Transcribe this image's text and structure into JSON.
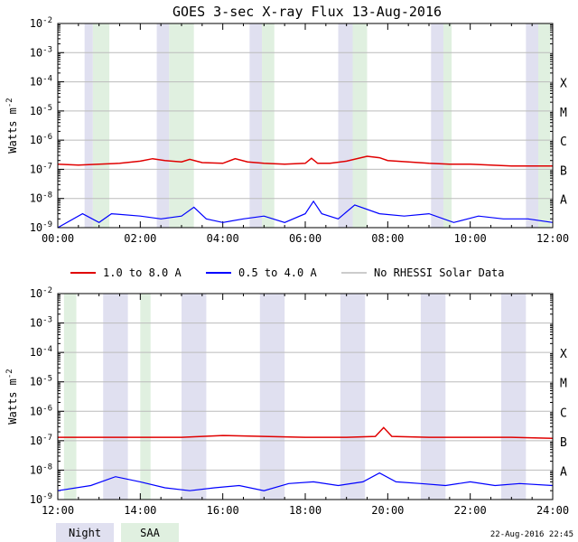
{
  "title": "GOES 3-sec X-ray Flux   13-Aug-2016",
  "ylabel": "Watts m",
  "ylabel_sup": "-2",
  "footer_timestamp": "22-Aug-2016 22:45",
  "colors": {
    "long": "#e00000",
    "short": "#0000ff",
    "norhessi": "#999999",
    "night": "#e0e0f0",
    "saa": "#e0f0e0",
    "grid": "#bbbbbb"
  },
  "legend": [
    {
      "label": "1.0 to 8.0 A",
      "color": "#e00000"
    },
    {
      "label": "0.5 to 4.0 A",
      "color": "#0000ff"
    },
    {
      "label": "No RHESSI Solar Data",
      "color": "#999999"
    }
  ],
  "key": [
    {
      "label": "Night",
      "color": "#e0e0f0"
    },
    {
      "label": "SAA",
      "color": "#e0f0e0"
    }
  ],
  "chart_data": [
    {
      "type": "line",
      "title": "GOES 3-sec X-ray Flux   13-Aug-2016",
      "ylabel": "Watts m-2",
      "xlim": [
        0,
        12
      ],
      "ylim_exp": [
        -9,
        -2
      ],
      "log_y": true,
      "x_ticks": [
        "00:00",
        "02:00",
        "04:00",
        "06:00",
        "08:00",
        "10:00",
        "12:00"
      ],
      "y_ticks": [
        "10-9",
        "10-8",
        "10-7",
        "10-6",
        "10-5",
        "10-4",
        "10-3",
        "10-2"
      ],
      "class_labels": [
        "A",
        "B",
        "C",
        "M",
        "X"
      ],
      "night": [
        [
          0.65,
          0.85
        ],
        [
          2.4,
          2.7
        ],
        [
          4.65,
          4.95
        ],
        [
          6.8,
          7.15
        ],
        [
          9.05,
          9.35
        ],
        [
          11.35,
          11.65
        ]
      ],
      "saa": [
        [
          0.85,
          1.25
        ],
        [
          2.7,
          3.3
        ],
        [
          4.95,
          5.25
        ],
        [
          7.15,
          7.5
        ],
        [
          9.35,
          9.55
        ],
        [
          11.65,
          11.95
        ]
      ],
      "series": [
        {
          "name": "1.0 to 8.0 A",
          "x": [
            0,
            0.5,
            1.0,
            1.5,
            2.0,
            2.3,
            2.6,
            3.0,
            3.2,
            3.5,
            4.0,
            4.3,
            4.6,
            5.0,
            5.5,
            6.0,
            6.15,
            6.3,
            6.6,
            7.0,
            7.5,
            7.8,
            8.0,
            8.5,
            9.0,
            9.5,
            10.0,
            10.5,
            11.0,
            11.5,
            12.0
          ],
          "y": [
            1.5e-07,
            1.4e-07,
            1.5e-07,
            1.6e-07,
            1.9e-07,
            2.3e-07,
            2e-07,
            1.8e-07,
            2.2e-07,
            1.7e-07,
            1.6e-07,
            2.3e-07,
            1.8e-07,
            1.6e-07,
            1.5e-07,
            1.6e-07,
            2.4e-07,
            1.6e-07,
            1.6e-07,
            1.9e-07,
            2.8e-07,
            2.5e-07,
            2e-07,
            1.8e-07,
            1.6e-07,
            1.5e-07,
            1.5e-07,
            1.4e-07,
            1.3e-07,
            1.3e-07,
            1.3e-07
          ]
        },
        {
          "name": "0.5 to 4.0 A",
          "x": [
            0,
            0.6,
            1.0,
            1.3,
            2.0,
            2.5,
            3.0,
            3.3,
            3.6,
            4.0,
            4.5,
            5.0,
            5.5,
            6.0,
            6.2,
            6.4,
            6.8,
            7.2,
            7.8,
            8.4,
            9.0,
            9.6,
            10.2,
            10.8,
            11.4,
            12.0
          ],
          "y": [
            1e-09,
            3e-09,
            1.5e-09,
            3e-09,
            2.5e-09,
            2e-09,
            2.5e-09,
            5e-09,
            2e-09,
            1.5e-09,
            2e-09,
            2.5e-09,
            1.5e-09,
            3e-09,
            8e-09,
            3e-09,
            2e-09,
            6e-09,
            3e-09,
            2.5e-09,
            3e-09,
            1.5e-09,
            2.5e-09,
            2e-09,
            2e-09,
            1.5e-09
          ]
        }
      ]
    },
    {
      "type": "line",
      "ylabel": "Watts m-2",
      "xlim": [
        12,
        24
      ],
      "ylim_exp": [
        -9,
        -2
      ],
      "log_y": true,
      "x_ticks": [
        "12:00",
        "14:00",
        "16:00",
        "18:00",
        "20:00",
        "22:00",
        "24:00"
      ],
      "y_ticks": [
        "10-9",
        "10-8",
        "10-7",
        "10-6",
        "10-5",
        "10-4",
        "10-3",
        "10-2"
      ],
      "class_labels": [
        "A",
        "B",
        "C",
        "M",
        "X"
      ],
      "night": [
        [
          13.1,
          13.7
        ],
        [
          15.0,
          15.6
        ],
        [
          16.9,
          17.5
        ],
        [
          18.85,
          19.45
        ],
        [
          20.8,
          21.4
        ],
        [
          22.75,
          23.35
        ]
      ],
      "saa": [
        [
          12.15,
          12.45
        ],
        [
          14.0,
          14.25
        ]
      ],
      "series": [
        {
          "name": "1.0 to 8.0 A",
          "x": [
            12,
            13,
            14,
            15,
            16,
            17,
            18,
            19,
            19.7,
            19.9,
            20.1,
            21,
            22,
            23,
            24
          ],
          "y": [
            1.3e-07,
            1.3e-07,
            1.3e-07,
            1.3e-07,
            1.5e-07,
            1.4e-07,
            1.3e-07,
            1.3e-07,
            1.4e-07,
            2.8e-07,
            1.4e-07,
            1.3e-07,
            1.3e-07,
            1.3e-07,
            1.2e-07
          ]
        },
        {
          "name": "0.5 to 4.0 A",
          "x": [
            12,
            12.8,
            13.4,
            14.0,
            14.6,
            15.2,
            15.8,
            16.4,
            17.0,
            17.6,
            18.2,
            18.8,
            19.4,
            19.8,
            20.2,
            20.8,
            21.4,
            22.0,
            22.6,
            23.2,
            24
          ],
          "y": [
            2e-09,
            3e-09,
            6e-09,
            4e-09,
            2.5e-09,
            2e-09,
            2.5e-09,
            3e-09,
            2e-09,
            3.5e-09,
            4e-09,
            3e-09,
            4e-09,
            8e-09,
            4e-09,
            3.5e-09,
            3e-09,
            4e-09,
            3e-09,
            3.5e-09,
            3e-09
          ]
        }
      ]
    }
  ]
}
